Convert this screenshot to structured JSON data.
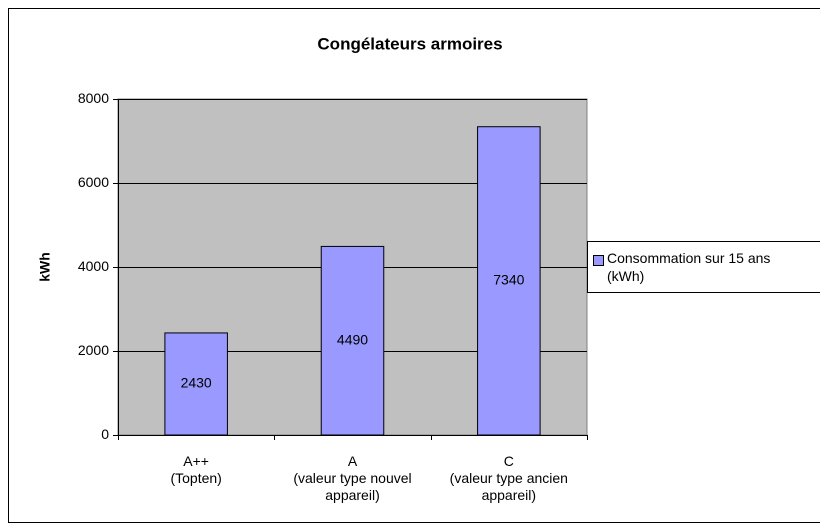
{
  "chart_data": {
    "type": "bar",
    "title": "Congélateurs armoires",
    "y_label": "kWh",
    "categories": [
      "A++\n(Topten)",
      "A\n(valeur type nouvel\nappareil)",
      "C\n(valeur type ancien\nappareil)"
    ],
    "series": [
      {
        "name": "Consommation sur 15 ans\n(kWh)",
        "color": "#9999ff",
        "values": [
          2430,
          4490,
          7340
        ]
      }
    ],
    "ylim": [
      0,
      8000
    ],
    "yticks": [
      0,
      2000,
      4000,
      6000,
      8000
    ],
    "grid": true,
    "legend": "right"
  }
}
